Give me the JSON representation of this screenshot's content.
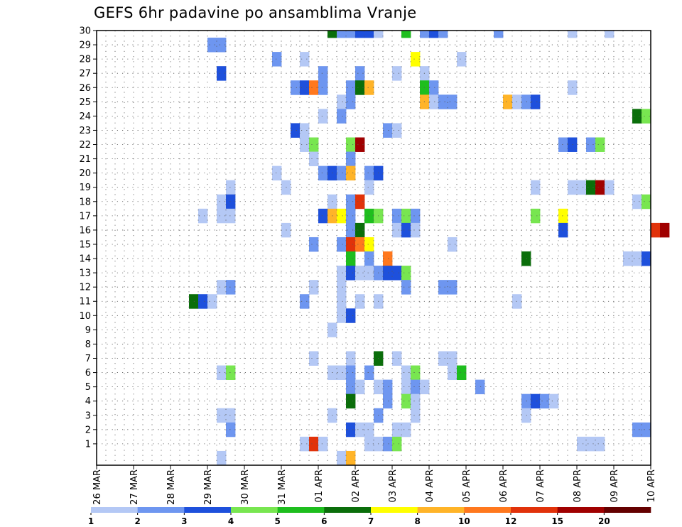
{
  "chart_data": {
    "type": "heatmap",
    "title": "GEFS 6hr padavine po ansamblima Vranje",
    "x_ticks": [
      "26 MAR",
      "27 MAR",
      "28 MAR",
      "29 MAR",
      "30 MAR",
      "31 MAR",
      "01 APR",
      "02 APR",
      "03 APR",
      "04 APR",
      "05 APR",
      "06 APR",
      "07 APR",
      "08 APR",
      "09 APR",
      "10 APR"
    ],
    "y_ticks": [
      "1",
      "2",
      "3",
      "4",
      "5",
      "6",
      "7",
      "8",
      "9",
      "10",
      "11",
      "12",
      "13",
      "14",
      "15",
      "16",
      "17",
      "18",
      "19",
      "20",
      "21",
      "22",
      "23",
      "24",
      "25",
      "26",
      "27",
      "28",
      "29",
      "30"
    ],
    "grid": true,
    "time_steps_per_day": 4,
    "colorbar": {
      "labels": [
        "1",
        "2",
        "3",
        "4",
        "5",
        "6",
        "7",
        "8",
        "10",
        "12",
        "15",
        "20"
      ],
      "colors": [
        "#b4c8f5",
        "#6e96f0",
        "#1e50dc",
        "#78e650",
        "#1ebe1e",
        "#0a6e0a",
        "#ffff00",
        "#ffb428",
        "#ff781e",
        "#e1320a",
        "#a00000",
        "#640000"
      ]
    },
    "values": [
      {
        "m": 30,
        "t": 25,
        "v": 6
      },
      {
        "m": 30,
        "t": 26,
        "v": 2
      },
      {
        "m": 30,
        "t": 27,
        "v": 2
      },
      {
        "m": 30,
        "t": 28,
        "v": 3
      },
      {
        "m": 30,
        "t": 29,
        "v": 3
      },
      {
        "m": 30,
        "t": 30,
        "v": 1
      },
      {
        "m": 30,
        "t": 33,
        "v": 5
      },
      {
        "m": 30,
        "t": 35,
        "v": 2
      },
      {
        "m": 30,
        "t": 36,
        "v": 3
      },
      {
        "m": 30,
        "t": 37,
        "v": 2
      },
      {
        "m": 30,
        "t": 43,
        "v": 2
      },
      {
        "m": 30,
        "t": 51,
        "v": 1
      },
      {
        "m": 30,
        "t": 55,
        "v": 1
      },
      {
        "m": 29,
        "t": 12,
        "v": 2
      },
      {
        "m": 29,
        "t": 13,
        "v": 2
      },
      {
        "m": 28,
        "t": 19,
        "v": 2
      },
      {
        "m": 28,
        "t": 22,
        "v": 1
      },
      {
        "m": 28,
        "t": 34,
        "v": 7
      },
      {
        "m": 28,
        "t": 39,
        "v": 1
      },
      {
        "m": 27,
        "t": 13,
        "v": 3
      },
      {
        "m": 27,
        "t": 24,
        "v": 2
      },
      {
        "m": 27,
        "t": 28,
        "v": 2
      },
      {
        "m": 27,
        "t": 32,
        "v": 1
      },
      {
        "m": 27,
        "t": 35,
        "v": 1
      },
      {
        "m": 26,
        "t": 21,
        "v": 2
      },
      {
        "m": 26,
        "t": 22,
        "v": 3
      },
      {
        "m": 26,
        "t": 23,
        "v": 9
      },
      {
        "m": 26,
        "t": 24,
        "v": 2
      },
      {
        "m": 26,
        "t": 27,
        "v": 2
      },
      {
        "m": 26,
        "t": 28,
        "v": 6
      },
      {
        "m": 26,
        "t": 29,
        "v": 8
      },
      {
        "m": 26,
        "t": 35,
        "v": 5
      },
      {
        "m": 26,
        "t": 36,
        "v": 2
      },
      {
        "m": 26,
        "t": 51,
        "v": 1
      },
      {
        "m": 25,
        "t": 26,
        "v": 1
      },
      {
        "m": 25,
        "t": 27,
        "v": 2
      },
      {
        "m": 25,
        "t": 35,
        "v": 8
      },
      {
        "m": 25,
        "t": 36,
        "v": 1
      },
      {
        "m": 25,
        "t": 37,
        "v": 2
      },
      {
        "m": 25,
        "t": 38,
        "v": 2
      },
      {
        "m": 25,
        "t": 44,
        "v": 8
      },
      {
        "m": 25,
        "t": 45,
        "v": 1
      },
      {
        "m": 25,
        "t": 46,
        "v": 2
      },
      {
        "m": 25,
        "t": 47,
        "v": 3
      },
      {
        "m": 24,
        "t": 24,
        "v": 1
      },
      {
        "m": 24,
        "t": 26,
        "v": 2
      },
      {
        "m": 24,
        "t": 58,
        "v": 6
      },
      {
        "m": 24,
        "t": 59,
        "v": 4
      },
      {
        "m": 23,
        "t": 21,
        "v": 3
      },
      {
        "m": 23,
        "t": 22,
        "v": 1
      },
      {
        "m": 23,
        "t": 31,
        "v": 2
      },
      {
        "m": 23,
        "t": 32,
        "v": 1
      },
      {
        "m": 22,
        "t": 22,
        "v": 1
      },
      {
        "m": 22,
        "t": 23,
        "v": 4
      },
      {
        "m": 22,
        "t": 27,
        "v": 4
      },
      {
        "m": 22,
        "t": 28,
        "v": 11
      },
      {
        "m": 22,
        "t": 50,
        "v": 2
      },
      {
        "m": 22,
        "t": 51,
        "v": 3
      },
      {
        "m": 22,
        "t": 53,
        "v": 2
      },
      {
        "m": 22,
        "t": 54,
        "v": 4
      },
      {
        "m": 21,
        "t": 23,
        "v": 1
      },
      {
        "m": 21,
        "t": 27,
        "v": 2
      },
      {
        "m": 20,
        "t": 19,
        "v": 1
      },
      {
        "m": 20,
        "t": 24,
        "v": 2
      },
      {
        "m": 20,
        "t": 25,
        "v": 3
      },
      {
        "m": 20,
        "t": 26,
        "v": 2
      },
      {
        "m": 20,
        "t": 27,
        "v": 8
      },
      {
        "m": 20,
        "t": 29,
        "v": 2
      },
      {
        "m": 20,
        "t": 30,
        "v": 3
      },
      {
        "m": 19,
        "t": 14,
        "v": 1
      },
      {
        "m": 19,
        "t": 20,
        "v": 1
      },
      {
        "m": 19,
        "t": 29,
        "v": 1
      },
      {
        "m": 19,
        "t": 47,
        "v": 1
      },
      {
        "m": 19,
        "t": 51,
        "v": 1
      },
      {
        "m": 19,
        "t": 52,
        "v": 1
      },
      {
        "m": 19,
        "t": 53,
        "v": 6
      },
      {
        "m": 19,
        "t": 54,
        "v": 11
      },
      {
        "m": 19,
        "t": 55,
        "v": 1
      },
      {
        "m": 18,
        "t": 13,
        "v": 1
      },
      {
        "m": 18,
        "t": 14,
        "v": 3
      },
      {
        "m": 18,
        "t": 25,
        "v": 1
      },
      {
        "m": 18,
        "t": 27,
        "v": 2
      },
      {
        "m": 18,
        "t": 28,
        "v": 10
      },
      {
        "m": 18,
        "t": 58,
        "v": 1
      },
      {
        "m": 18,
        "t": 59,
        "v": 4
      },
      {
        "m": 17,
        "t": 11,
        "v": 1
      },
      {
        "m": 17,
        "t": 13,
        "v": 1
      },
      {
        "m": 17,
        "t": 14,
        "v": 1
      },
      {
        "m": 17,
        "t": 24,
        "v": 3
      },
      {
        "m": 17,
        "t": 25,
        "v": 8
      },
      {
        "m": 17,
        "t": 26,
        "v": 7
      },
      {
        "m": 17,
        "t": 27,
        "v": 2
      },
      {
        "m": 17,
        "t": 29,
        "v": 5
      },
      {
        "m": 17,
        "t": 30,
        "v": 4
      },
      {
        "m": 17,
        "t": 32,
        "v": 2
      },
      {
        "m": 17,
        "t": 33,
        "v": 4
      },
      {
        "m": 17,
        "t": 34,
        "v": 2
      },
      {
        "m": 17,
        "t": 47,
        "v": 4
      },
      {
        "m": 17,
        "t": 50,
        "v": 7
      },
      {
        "m": 16,
        "t": 20,
        "v": 1
      },
      {
        "m": 16,
        "t": 27,
        "v": 2
      },
      {
        "m": 16,
        "t": 28,
        "v": 6
      },
      {
        "m": 16,
        "t": 32,
        "v": 1
      },
      {
        "m": 16,
        "t": 33,
        "v": 3
      },
      {
        "m": 16,
        "t": 34,
        "v": 1
      },
      {
        "m": 16,
        "t": 50,
        "v": 3
      },
      {
        "m": 16,
        "t": 60,
        "v": 10
      },
      {
        "m": 16,
        "t": 61,
        "v": 11
      },
      {
        "m": 15,
        "t": 23,
        "v": 2
      },
      {
        "m": 15,
        "t": 26,
        "v": 2
      },
      {
        "m": 15,
        "t": 27,
        "v": 10
      },
      {
        "m": 15,
        "t": 28,
        "v": 9
      },
      {
        "m": 15,
        "t": 29,
        "v": 7
      },
      {
        "m": 15,
        "t": 38,
        "v": 1
      },
      {
        "m": 14,
        "t": 27,
        "v": 5
      },
      {
        "m": 14,
        "t": 29,
        "v": 2
      },
      {
        "m": 14,
        "t": 31,
        "v": 9
      },
      {
        "m": 14,
        "t": 46,
        "v": 6
      },
      {
        "m": 14,
        "t": 57,
        "v": 1
      },
      {
        "m": 14,
        "t": 58,
        "v": 1
      },
      {
        "m": 14,
        "t": 59,
        "v": 3
      },
      {
        "m": 13,
        "t": 26,
        "v": 1
      },
      {
        "m": 13,
        "t": 27,
        "v": 3
      },
      {
        "m": 13,
        "t": 28,
        "v": 1
      },
      {
        "m": 13,
        "t": 29,
        "v": 1
      },
      {
        "m": 13,
        "t": 30,
        "v": 2
      },
      {
        "m": 13,
        "t": 31,
        "v": 3
      },
      {
        "m": 13,
        "t": 32,
        "v": 3
      },
      {
        "m": 13,
        "t": 33,
        "v": 4
      },
      {
        "m": 12,
        "t": 13,
        "v": 1
      },
      {
        "m": 12,
        "t": 14,
        "v": 2
      },
      {
        "m": 12,
        "t": 23,
        "v": 1
      },
      {
        "m": 12,
        "t": 26,
        "v": 1
      },
      {
        "m": 12,
        "t": 33,
        "v": 2
      },
      {
        "m": 12,
        "t": 37,
        "v": 2
      },
      {
        "m": 12,
        "t": 38,
        "v": 2
      },
      {
        "m": 11,
        "t": 10,
        "v": 6
      },
      {
        "m": 11,
        "t": 11,
        "v": 3
      },
      {
        "m": 11,
        "t": 12,
        "v": 1
      },
      {
        "m": 11,
        "t": 22,
        "v": 2
      },
      {
        "m": 11,
        "t": 26,
        "v": 1
      },
      {
        "m": 11,
        "t": 28,
        "v": 1
      },
      {
        "m": 11,
        "t": 30,
        "v": 1
      },
      {
        "m": 11,
        "t": 45,
        "v": 1
      },
      {
        "m": 10,
        "t": 26,
        "v": 1
      },
      {
        "m": 10,
        "t": 27,
        "v": 3
      },
      {
        "m": 9,
        "t": 25,
        "v": 1
      },
      {
        "m": 7,
        "t": 23,
        "v": 1
      },
      {
        "m": 7,
        "t": 27,
        "v": 1
      },
      {
        "m": 7,
        "t": 30,
        "v": 6
      },
      {
        "m": 7,
        "t": 32,
        "v": 1
      },
      {
        "m": 7,
        "t": 37,
        "v": 1
      },
      {
        "m": 7,
        "t": 38,
        "v": 1
      },
      {
        "m": 6,
        "t": 13,
        "v": 1
      },
      {
        "m": 6,
        "t": 14,
        "v": 4
      },
      {
        "m": 6,
        "t": 25,
        "v": 1
      },
      {
        "m": 6,
        "t": 26,
        "v": 1
      },
      {
        "m": 6,
        "t": 27,
        "v": 2
      },
      {
        "m": 6,
        "t": 29,
        "v": 2
      },
      {
        "m": 6,
        "t": 33,
        "v": 1
      },
      {
        "m": 6,
        "t": 34,
        "v": 4
      },
      {
        "m": 6,
        "t": 38,
        "v": 1
      },
      {
        "m": 6,
        "t": 39,
        "v": 5
      },
      {
        "m": 5,
        "t": 27,
        "v": 2
      },
      {
        "m": 5,
        "t": 28,
        "v": 1
      },
      {
        "m": 5,
        "t": 30,
        "v": 1
      },
      {
        "m": 5,
        "t": 31,
        "v": 2
      },
      {
        "m": 5,
        "t": 33,
        "v": 1
      },
      {
        "m": 5,
        "t": 34,
        "v": 2
      },
      {
        "m": 5,
        "t": 35,
        "v": 1
      },
      {
        "m": 5,
        "t": 41,
        "v": 2
      },
      {
        "m": 4,
        "t": 27,
        "v": 6
      },
      {
        "m": 4,
        "t": 31,
        "v": 2
      },
      {
        "m": 4,
        "t": 33,
        "v": 4
      },
      {
        "m": 4,
        "t": 34,
        "v": 1
      },
      {
        "m": 4,
        "t": 46,
        "v": 2
      },
      {
        "m": 4,
        "t": 47,
        "v": 3
      },
      {
        "m": 4,
        "t": 48,
        "v": 2
      },
      {
        "m": 4,
        "t": 49,
        "v": 1
      },
      {
        "m": 3,
        "t": 13,
        "v": 1
      },
      {
        "m": 3,
        "t": 14,
        "v": 1
      },
      {
        "m": 3,
        "t": 25,
        "v": 1
      },
      {
        "m": 3,
        "t": 30,
        "v": 2
      },
      {
        "m": 3,
        "t": 34,
        "v": 1
      },
      {
        "m": 3,
        "t": 46,
        "v": 1
      },
      {
        "m": 2,
        "t": 14,
        "v": 2
      },
      {
        "m": 2,
        "t": 27,
        "v": 3
      },
      {
        "m": 2,
        "t": 28,
        "v": 1
      },
      {
        "m": 2,
        "t": 29,
        "v": 1
      },
      {
        "m": 2,
        "t": 32,
        "v": 1
      },
      {
        "m": 2,
        "t": 33,
        "v": 1
      },
      {
        "m": 2,
        "t": 58,
        "v": 2
      },
      {
        "m": 2,
        "t": 59,
        "v": 2
      },
      {
        "m": 1,
        "t": 22,
        "v": 1
      },
      {
        "m": 1,
        "t": 23,
        "v": 10
      },
      {
        "m": 1,
        "t": 24,
        "v": 1
      },
      {
        "m": 1,
        "t": 29,
        "v": 1
      },
      {
        "m": 1,
        "t": 30,
        "v": 1
      },
      {
        "m": 1,
        "t": 31,
        "v": 2
      },
      {
        "m": 1,
        "t": 32,
        "v": 4
      },
      {
        "m": 1,
        "t": 52,
        "v": 1
      },
      {
        "m": 1,
        "t": 53,
        "v": 1
      },
      {
        "m": 1,
        "t": 54,
        "v": 1
      },
      {
        "m": 0,
        "t": 13,
        "v": 1
      },
      {
        "m": 0,
        "t": 26,
        "v": 1
      },
      {
        "m": 0,
        "t": 27,
        "v": 8
      }
    ]
  }
}
